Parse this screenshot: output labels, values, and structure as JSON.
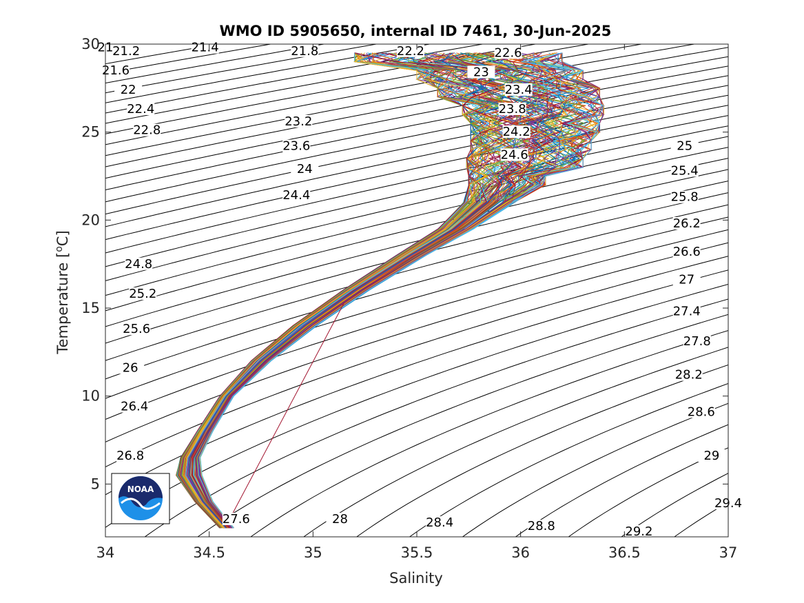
{
  "chart_data": {
    "type": "line",
    "title": "WMO ID 5905650, internal ID 7461, 30-Jun-2025",
    "xlabel": "Salinity",
    "ylabel": "Temperature [°C]",
    "ylabel_prefix": "Temperature [",
    "ylabel_sup": "o",
    "ylabel_suffix": "C]",
    "xlim": [
      34,
      37
    ],
    "ylim": [
      2,
      30
    ],
    "xticks": [
      34,
      34.5,
      35,
      35.5,
      36,
      36.5,
      37
    ],
    "xtick_labels": [
      "34",
      "34.5",
      "35",
      "35.5",
      "36",
      "36.5",
      "37"
    ],
    "yticks": [
      5,
      10,
      15,
      20,
      25,
      30
    ],
    "ytick_labels": [
      "5",
      "10",
      "15",
      "20",
      "25",
      "30"
    ],
    "grid": false,
    "logo": {
      "text": "NOAA",
      "colors": {
        "navy": "#1a2a6c",
        "blue": "#1e90e8",
        "white": "#ffffff"
      }
    },
    "density_contours": {
      "levels": [
        "21",
        "21.2",
        "21.4",
        "21.6",
        "21.8",
        "22",
        "22.2",
        "22.4",
        "22.6",
        "22.8",
        "23",
        "23.2",
        "23.4",
        "23.6",
        "23.8",
        "24",
        "24.2",
        "24.4",
        "24.6",
        "24.8",
        "25",
        "25.2",
        "25.4",
        "25.6",
        "25.8",
        "26",
        "26.2",
        "26.4",
        "26.6",
        "26.8",
        "27",
        "27.2",
        "27.4",
        "27.6",
        "27.8",
        "28",
        "28.2",
        "28.4",
        "28.6",
        "28.8",
        "29",
        "29.2",
        "29.4"
      ],
      "labeled": [
        {
          "text": "21",
          "s": 34.0,
          "t": 29.7
        },
        {
          "text": "21.2",
          "s": 34.1,
          "t": 29.5
        },
        {
          "text": "21.4",
          "s": 34.48,
          "t": 29.7
        },
        {
          "text": "21.6",
          "s": 34.05,
          "t": 28.4
        },
        {
          "text": "21.8",
          "s": 34.96,
          "t": 29.5
        },
        {
          "text": "22",
          "s": 34.11,
          "t": 27.3
        },
        {
          "text": "22.2",
          "s": 35.47,
          "t": 29.5
        },
        {
          "text": "22.4",
          "s": 34.17,
          "t": 26.2
        },
        {
          "text": "22.6",
          "s": 35.94,
          "t": 29.4
        },
        {
          "text": "22.8",
          "s": 34.2,
          "t": 25.0
        },
        {
          "text": "23",
          "s": 35.81,
          "t": 28.3
        },
        {
          "text": "23.2",
          "s": 34.93,
          "t": 25.5
        },
        {
          "text": "23.4",
          "s": 35.99,
          "t": 27.3
        },
        {
          "text": "23.6",
          "s": 34.92,
          "t": 24.1
        },
        {
          "text": "23.8",
          "s": 35.96,
          "t": 26.2
        },
        {
          "text": "24",
          "s": 34.96,
          "t": 22.8
        },
        {
          "text": "24.2",
          "s": 35.98,
          "t": 24.9
        },
        {
          "text": "24.4",
          "s": 34.92,
          "t": 21.3
        },
        {
          "text": "24.6",
          "s": 35.97,
          "t": 23.6
        },
        {
          "text": "24.8",
          "s": 34.16,
          "t": 17.4
        },
        {
          "text": "25",
          "s": 36.79,
          "t": 24.1
        },
        {
          "text": "25.2",
          "s": 34.18,
          "t": 15.7
        },
        {
          "text": "25.4",
          "s": 36.79,
          "t": 22.7
        },
        {
          "text": "25.6",
          "s": 34.15,
          "t": 13.7
        },
        {
          "text": "25.8",
          "s": 36.79,
          "t": 21.2
        },
        {
          "text": "26",
          "s": 34.12,
          "t": 11.5
        },
        {
          "text": "26.2",
          "s": 36.8,
          "t": 19.7
        },
        {
          "text": "26.4",
          "s": 34.14,
          "t": 9.3
        },
        {
          "text": "26.6",
          "s": 36.8,
          "t": 18.1
        },
        {
          "text": "26.8",
          "s": 34.12,
          "t": 6.5
        },
        {
          "text": "27",
          "s": 36.8,
          "t": 16.5
        },
        {
          "text": "27.4",
          "s": 36.8,
          "t": 14.7
        },
        {
          "text": "27.6",
          "s": 34.63,
          "t": 2.9
        },
        {
          "text": "27.8",
          "s": 36.85,
          "t": 13.0
        },
        {
          "text": "28",
          "s": 35.13,
          "t": 2.9
        },
        {
          "text": "28.2",
          "s": 36.81,
          "t": 11.1
        },
        {
          "text": "28.4",
          "s": 35.61,
          "t": 2.7
        },
        {
          "text": "28.6",
          "s": 36.87,
          "t": 9.0
        },
        {
          "text": "28.8",
          "s": 36.1,
          "t": 2.5
        },
        {
          "text": "29",
          "s": 36.92,
          "t": 6.5
        },
        {
          "text": "29.2",
          "s": 36.57,
          "t": 2.2
        },
        {
          "text": "29.4",
          "s": 37.0,
          "t": 3.8
        }
      ]
    },
    "profiles": {
      "description_colors": [
        "#0072bd",
        "#d95319",
        "#edb120",
        "#7e2f8e",
        "#77ac30",
        "#4dbeee",
        "#a2142f"
      ],
      "envelope": [
        {
          "t": 2.5,
          "s": [
            34.55,
            34.62
          ]
        },
        {
          "t": 4.0,
          "s": [
            34.43,
            34.52
          ]
        },
        {
          "t": 5.5,
          "s": [
            34.34,
            34.47
          ]
        },
        {
          "t": 6.5,
          "s": [
            34.36,
            34.46
          ]
        },
        {
          "t": 8.0,
          "s": [
            34.44,
            34.52
          ]
        },
        {
          "t": 10.0,
          "s": [
            34.55,
            34.62
          ]
        },
        {
          "t": 12.0,
          "s": [
            34.7,
            34.8
          ]
        },
        {
          "t": 14.0,
          "s": [
            34.9,
            35.02
          ]
        },
        {
          "t": 16.0,
          "s": [
            35.14,
            35.27
          ]
        },
        {
          "t": 18.0,
          "s": [
            35.4,
            35.55
          ]
        },
        {
          "t": 19.5,
          "s": [
            35.6,
            35.78
          ]
        },
        {
          "t": 21.0,
          "s": [
            35.72,
            35.98
          ]
        },
        {
          "t": 22.0,
          "s": [
            35.75,
            36.12
          ]
        },
        {
          "t": 23.0,
          "s": [
            35.74,
            36.3
          ]
        },
        {
          "t": 24.0,
          "s": [
            35.76,
            36.34
          ]
        },
        {
          "t": 25.0,
          "s": [
            35.76,
            36.38
          ]
        },
        {
          "t": 26.0,
          "s": [
            35.72,
            36.4
          ]
        },
        {
          "t": 27.0,
          "s": [
            35.6,
            36.38
          ]
        },
        {
          "t": 28.0,
          "s": [
            35.5,
            36.3
          ]
        },
        {
          "t": 29.0,
          "s": [
            35.2,
            36.2
          ]
        }
      ],
      "outlier_line": [
        {
          "s": 34.58,
          "t": 2.6
        },
        {
          "s": 35.15,
          "t": 15.3
        }
      ]
    }
  }
}
